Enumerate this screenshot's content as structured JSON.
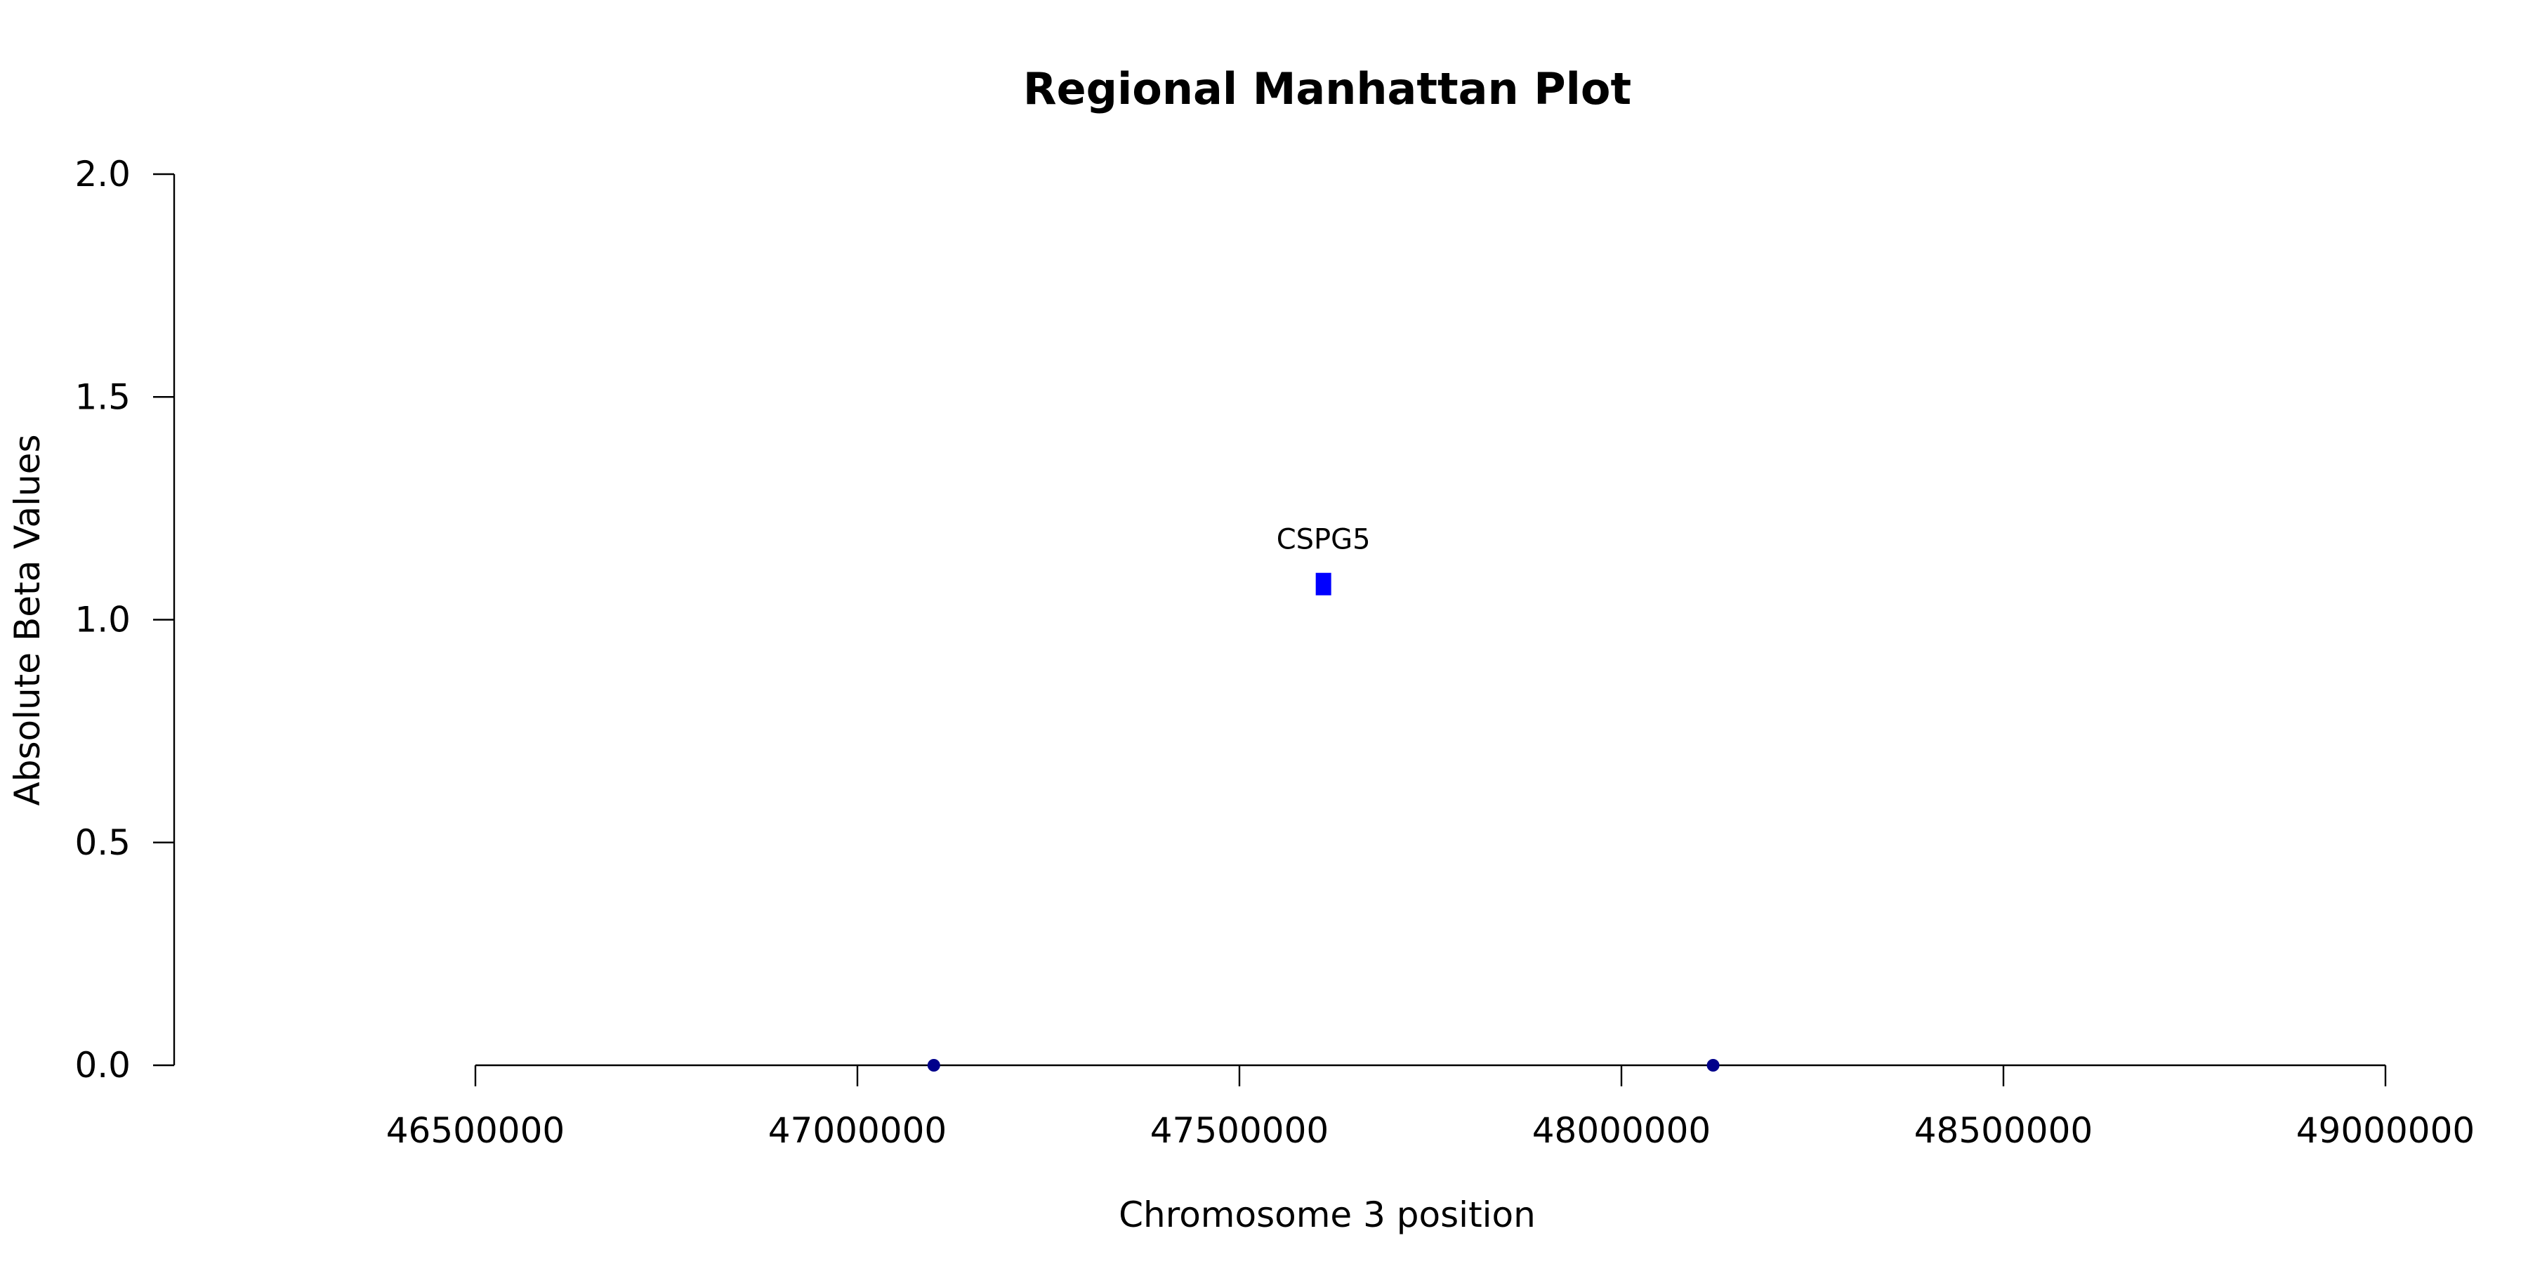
{
  "chart_data": {
    "type": "scatter",
    "title": "Regional Manhattan Plot",
    "xlabel": "Chromosome 3 position",
    "ylabel": "Absolute Beta Values",
    "xlim": [
      46500000,
      49000000
    ],
    "ylim": [
      0,
      2
    ],
    "x_ticks": [
      "46500000",
      "47000000",
      "47500000",
      "48000000",
      "48500000",
      "49000000"
    ],
    "y_ticks": [
      "0.0",
      "0.5",
      "1.0",
      "1.5",
      "2.0"
    ],
    "grid": false,
    "points": [
      {
        "x": 47100000,
        "y": 0.0,
        "label": "",
        "color": "#00008b",
        "shape": "circle"
      },
      {
        "x": 47610000,
        "y": 1.08,
        "label": "CSPG5",
        "color": "#0000ff",
        "shape": "square"
      },
      {
        "x": 48120000,
        "y": 0.0,
        "label": "",
        "color": "#00008b",
        "shape": "circle"
      }
    ]
  }
}
